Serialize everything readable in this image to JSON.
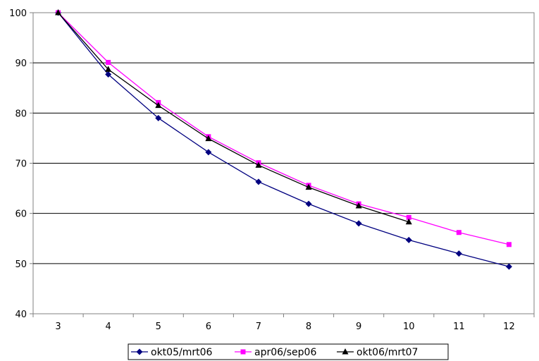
{
  "chart_data": {
    "type": "line",
    "title": "",
    "xlabel": "",
    "ylabel": "",
    "x": [
      3,
      4,
      5,
      6,
      7,
      8,
      9,
      10,
      11,
      12
    ],
    "xlim": [
      2.5,
      12.5
    ],
    "ylim": [
      40,
      100
    ],
    "yticks": [
      40,
      50,
      60,
      70,
      80,
      90,
      100
    ],
    "grid": true,
    "legend_position": "bottom",
    "series": [
      {
        "name": "okt05/mrt06",
        "color": "#000080",
        "marker": "diamond",
        "values": [
          100,
          87.7,
          79.0,
          72.2,
          66.3,
          61.9,
          58.0,
          54.7,
          52.0,
          49.4
        ]
      },
      {
        "name": "apr06/sep06",
        "color": "#ff00ff",
        "marker": "square",
        "values": [
          100,
          90.1,
          82.1,
          75.3,
          70.1,
          65.6,
          61.9,
          59.2,
          56.2,
          53.8
        ]
      },
      {
        "name": "okt06/mrt07",
        "color": "#000000",
        "marker": "triangle",
        "values": [
          100,
          88.7,
          81.5,
          74.9,
          69.6,
          65.2,
          61.5,
          58.3,
          null,
          null
        ]
      }
    ]
  }
}
